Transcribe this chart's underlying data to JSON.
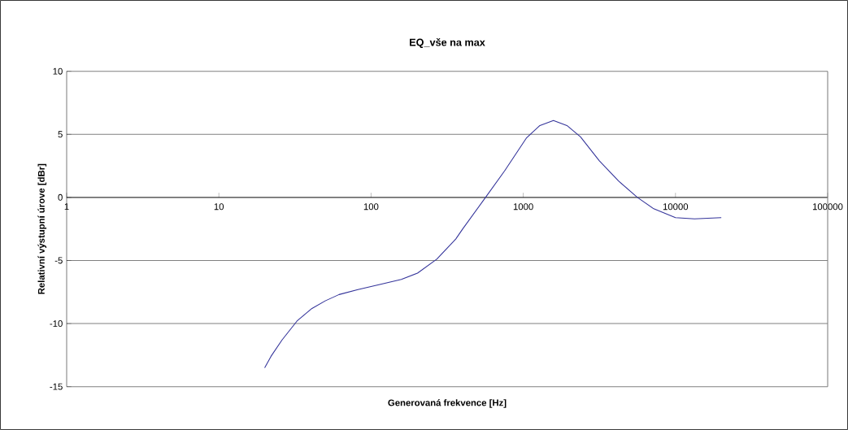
{
  "chart_data": {
    "type": "line",
    "title": "EQ_vše na max",
    "xlabel": "Generovaná frekvence [Hz]",
    "ylabel": "Relativní výstupní úrove   [dBr]",
    "log": "x",
    "grid": "y",
    "marker": "none",
    "line_style": "solid",
    "xlim": [
      1,
      100000
    ],
    "ylim": [
      -15,
      10
    ],
    "xticks": [
      1,
      10,
      100,
      1000,
      10000,
      100000
    ],
    "yticks": [
      -15,
      -10,
      -5,
      0,
      5,
      10
    ],
    "series": [
      {
        "color": "#33339a",
        "x": [
          20,
          22,
          26,
          32.6,
          40.9,
          50,
          61.6,
          82,
          114,
          158,
          202,
          270,
          360,
          400,
          565,
          754,
          1047,
          1285,
          1578,
          1936,
          2377,
          3162,
          4226,
          5623,
          7197,
          10000,
          13330,
          20000
        ],
        "values": [
          -13.5,
          -12.6,
          -11.3,
          -9.8,
          -8.8,
          -8.2,
          -7.7,
          -7.3,
          -6.9,
          -6.5,
          -6.0,
          -4.9,
          -3.3,
          -2.5,
          0,
          2.1,
          4.7,
          5.7,
          6.1,
          5.7,
          4.8,
          2.9,
          1.3,
          0,
          -0.9,
          -1.6,
          -1.7,
          -1.6
        ]
      }
    ]
  }
}
